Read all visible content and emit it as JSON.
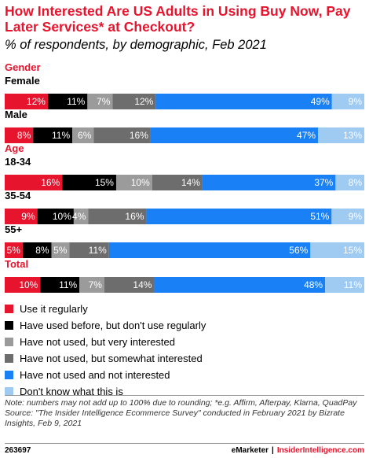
{
  "title": "How Interested Are US Adults in Using Buy Now, Pay Later Services* at Checkout?",
  "subtitle": "% of respondents, by demographic, Feb 2021",
  "chart_data": {
    "type": "bar",
    "stacked": true,
    "orientation": "horizontal",
    "title": "How Interested Are US Adults in Using Buy Now, Pay Later Services* at Checkout?",
    "subtitle": "% of respondents, by demographic, Feb 2021",
    "groups": [
      {
        "label": "Gender",
        "rows": [
          {
            "label": "Female",
            "values": [
              12,
              11,
              7,
              12,
              49,
              9
            ]
          },
          {
            "label": "Male",
            "values": [
              8,
              11,
              6,
              16,
              47,
              13
            ]
          }
        ]
      },
      {
        "label": "Age",
        "rows": [
          {
            "label": "18-34",
            "values": [
              16,
              15,
              10,
              14,
              37,
              8
            ]
          },
          {
            "label": "35-54",
            "values": [
              9,
              10,
              4,
              16,
              51,
              9
            ]
          },
          {
            "label": "55+",
            "values": [
              5,
              8,
              5,
              11,
              56,
              15
            ]
          }
        ]
      },
      {
        "label": "Total",
        "rows": [
          {
            "label": "",
            "values": [
              10,
              11,
              7,
              14,
              48,
              11
            ]
          }
        ]
      }
    ],
    "series": [
      {
        "name": "Use it regularly",
        "color": "#e6142d"
      },
      {
        "name": "Have used before, but don't use regularly",
        "color": "#000000"
      },
      {
        "name": "Have not used, but very interested",
        "color": "#9b9b9b"
      },
      {
        "name": "Have not used, but somewhat interested",
        "color": "#6d6d6d"
      },
      {
        "name": "Have not used and not interested",
        "color": "#1a80f5"
      },
      {
        "name": "Don't know what this is",
        "color": "#9fcaf2"
      }
    ],
    "value_suffix": "%",
    "xlim": [
      0,
      100
    ],
    "legend_position": "bottom-left"
  },
  "note": "Note: numbers may not add up to 100% due to rounding; *e.g. Affirm, Afterpay, Klarna, QuadPay",
  "source": "Source: \"The Insider Intelligence Ecommerce Survey\" conducted in February 2021 by Bizrate Insights, Feb 9, 2021",
  "footer": {
    "chart_id": "263697",
    "brand_left": "eMarketer",
    "separator": "|",
    "brand_right": "InsiderIntelligence.com"
  },
  "colors": {
    "accent": "#e6142d"
  }
}
